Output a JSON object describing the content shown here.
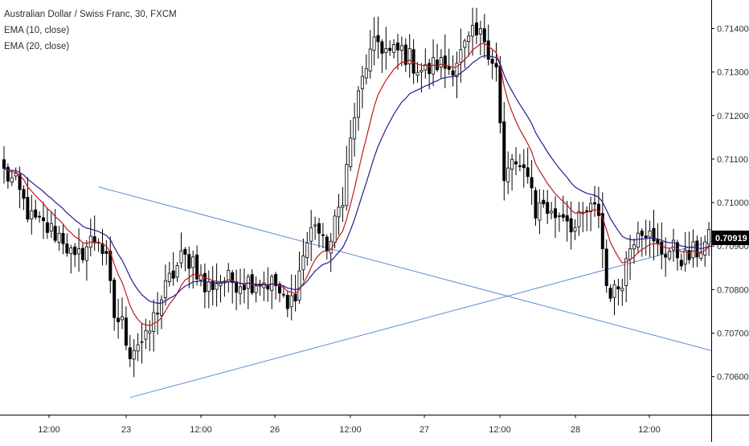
{
  "chart_data": {
    "type": "candlestick",
    "title": "Australian Dollar / Swiss Franc, 30, FXCM",
    "indicators": [
      {
        "name": "EMA (10, close)",
        "period": 10,
        "color": "#c2181f"
      },
      {
        "name": "EMA (20, close)",
        "period": 20,
        "color": "#1f1f8e"
      }
    ],
    "ylim": [
      0.7052,
      0.7146
    ],
    "y_ticks": [
      "0.70600",
      "0.70700",
      "0.70800",
      "0.70900",
      "0.71000",
      "0.71100",
      "0.71200",
      "0.71300",
      "0.71400"
    ],
    "x_ticks": [
      "12:00",
      "23",
      "12:00",
      "26",
      "12:00",
      "27",
      "12:00",
      "28",
      "12:00"
    ],
    "last_price": "0.70919",
    "grid": false,
    "colors": {
      "up": "#ffffff",
      "down": "#000000",
      "wick": "#000000",
      "trendline": "#5b8bd9",
      "last_price_bg": "#000000"
    },
    "trendlines": [
      {
        "from": {
          "bar": 24,
          "price": 0.71036
        },
        "to": {
          "bar": 180,
          "price": 0.70659
        }
      },
      {
        "from": {
          "bar": 32,
          "price": 0.70552
        },
        "to": {
          "bar": 180,
          "price": 0.70912
        }
      }
    ],
    "anchors": [
      [
        0,
        0.7107
      ],
      [
        3,
        0.7104
      ],
      [
        7,
        0.7096
      ],
      [
        11,
        0.7094
      ],
      [
        15,
        0.7092
      ],
      [
        18,
        0.7086
      ],
      [
        20,
        0.7089
      ],
      [
        22,
        0.7091
      ],
      [
        24,
        0.7092
      ],
      [
        26,
        0.7086
      ],
      [
        28,
        0.7074
      ],
      [
        30,
        0.7072
      ],
      [
        32,
        0.7066
      ],
      [
        34,
        0.7068
      ],
      [
        36,
        0.7068
      ],
      [
        39,
        0.7076
      ],
      [
        42,
        0.7082
      ],
      [
        45,
        0.7087
      ],
      [
        48,
        0.7087
      ],
      [
        51,
        0.708
      ],
      [
        54,
        0.7082
      ],
      [
        57,
        0.7082
      ],
      [
        60,
        0.7082
      ],
      [
        63,
        0.7082
      ],
      [
        66,
        0.7082
      ],
      [
        69,
        0.7081
      ],
      [
        72,
        0.7075
      ],
      [
        74,
        0.708
      ],
      [
        76,
        0.7088
      ],
      [
        79,
        0.7096
      ],
      [
        81,
        0.709
      ],
      [
        83,
        0.7091
      ],
      [
        86,
        0.7102
      ],
      [
        89,
        0.712
      ],
      [
        92,
        0.7132
      ],
      [
        95,
        0.7137
      ],
      [
        98,
        0.7134
      ],
      [
        101,
        0.7135
      ],
      [
        104,
        0.7132
      ],
      [
        107,
        0.713
      ],
      [
        110,
        0.7132
      ],
      [
        113,
        0.7131
      ],
      [
        116,
        0.7134
      ],
      [
        119,
        0.7138
      ],
      [
        122,
        0.7138
      ],
      [
        125,
        0.7131
      ],
      [
        127,
        0.7104
      ],
      [
        129,
        0.711
      ],
      [
        131,
        0.7106
      ],
      [
        133,
        0.7108
      ],
      [
        135,
        0.7098
      ],
      [
        137,
        0.71
      ],
      [
        139,
        0.7097
      ],
      [
        142,
        0.7098
      ],
      [
        145,
        0.7094
      ],
      [
        148,
        0.7098
      ],
      [
        151,
        0.7098
      ],
      [
        153,
        0.7081
      ],
      [
        155,
        0.7079
      ],
      [
        157,
        0.7083
      ],
      [
        159,
        0.709
      ],
      [
        161,
        0.7095
      ],
      [
        163,
        0.7094
      ],
      [
        165,
        0.709
      ],
      [
        167,
        0.7089
      ],
      [
        170,
        0.7089
      ],
      [
        173,
        0.7087
      ],
      [
        176,
        0.7089
      ],
      [
        180,
        0.7092
      ]
    ]
  }
}
